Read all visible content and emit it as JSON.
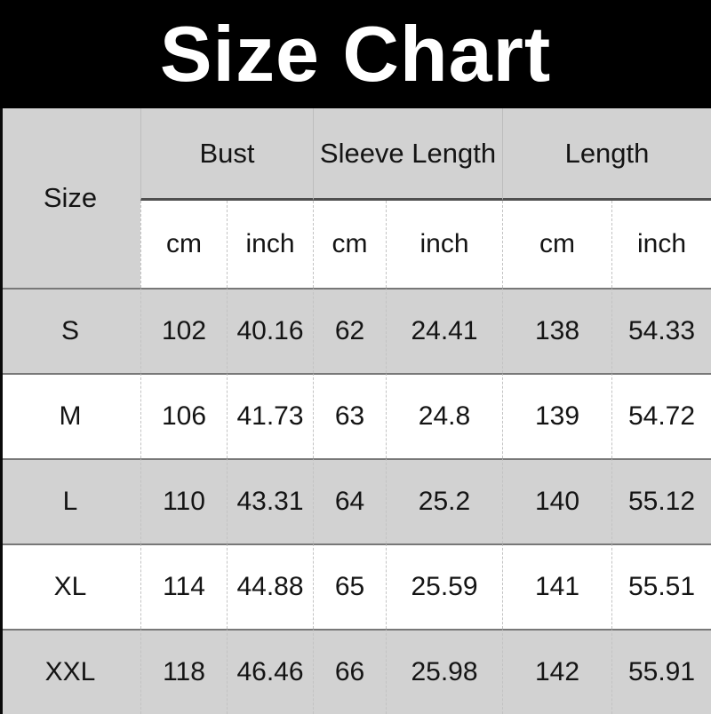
{
  "banner": {
    "title": "Size Chart"
  },
  "table": {
    "corner_header": "Size",
    "groups": [
      {
        "label": "Bust"
      },
      {
        "label": "Sleeve Length"
      },
      {
        "label": "Length"
      }
    ],
    "unit_headers": [
      "cm",
      "inch",
      "cm",
      "inch",
      "cm",
      "inch"
    ],
    "rows": [
      {
        "size": "S",
        "values": [
          "102",
          "40.16",
          "62",
          "24.41",
          "138",
          "54.33"
        ]
      },
      {
        "size": "M",
        "values": [
          "106",
          "41.73",
          "63",
          "24.8",
          "139",
          "54.72"
        ]
      },
      {
        "size": "L",
        "values": [
          "110",
          "43.31",
          "64",
          "25.2",
          "140",
          "55.12"
        ]
      },
      {
        "size": "XL",
        "values": [
          "114",
          "44.88",
          "65",
          "25.59",
          "141",
          "55.51"
        ]
      },
      {
        "size": "XXL",
        "values": [
          "118",
          "46.46",
          "66",
          "25.98",
          "142",
          "55.91"
        ]
      }
    ]
  },
  "chart_data": {
    "type": "table",
    "title": "Size Chart",
    "columns": [
      "Size",
      "Bust (cm)",
      "Bust (inch)",
      "Sleeve Length (cm)",
      "Sleeve Length (inch)",
      "Length (cm)",
      "Length (inch)"
    ],
    "rows": [
      [
        "S",
        102,
        40.16,
        62,
        24.41,
        138,
        54.33
      ],
      [
        "M",
        106,
        41.73,
        63,
        24.8,
        139,
        54.72
      ],
      [
        "L",
        110,
        43.31,
        64,
        25.2,
        140,
        55.12
      ],
      [
        "XL",
        114,
        44.88,
        65,
        25.59,
        141,
        55.51
      ],
      [
        "XXL",
        118,
        46.46,
        66,
        25.98,
        142,
        55.91
      ]
    ],
    "layout": {
      "shaded_rows": [
        "S",
        "L",
        "XXL"
      ],
      "header_shaded": true
    }
  },
  "colors": {
    "banner_bg": "#000000",
    "banner_text": "#ffffff",
    "shaded_row": "#d2d2d2",
    "plain_row": "#ffffff",
    "header_rule": "#4f4f4f",
    "row_rule": "#787878",
    "column_dash": "#c3c3c3",
    "text": "#141414"
  }
}
